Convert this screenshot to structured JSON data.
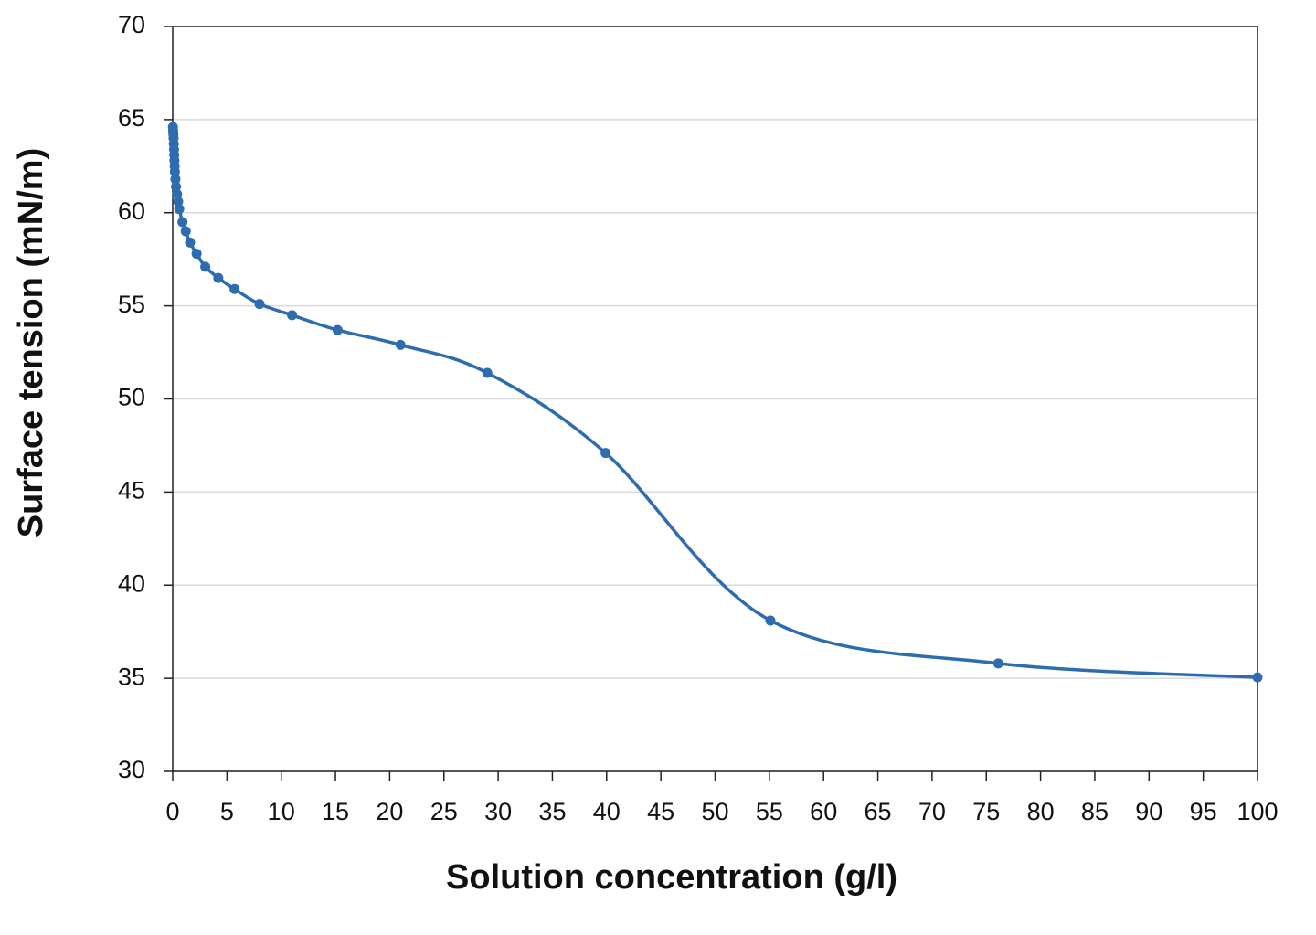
{
  "chart_data": {
    "type": "line",
    "x_label": "Solution concentration (g/l)",
    "y_label": "Surface tension (mN/m)",
    "xlim": [
      0,
      100
    ],
    "xticks": [
      0,
      5,
      10,
      15,
      20,
      25,
      30,
      35,
      40,
      45,
      50,
      55,
      60,
      65,
      70,
      75,
      80,
      85,
      90,
      95,
      100
    ],
    "ylim": [
      30,
      70
    ],
    "yticks": [
      30,
      35,
      40,
      45,
      50,
      55,
      60,
      65,
      70
    ],
    "grid": true,
    "smooth": true,
    "series": [
      {
        "color": "#2e6cb0",
        "x": [
          0.02,
          0.04,
          0.06,
          0.08,
          0.1,
          0.12,
          0.14,
          0.16,
          0.18,
          0.2,
          0.25,
          0.3,
          0.4,
          0.5,
          0.6,
          0.9,
          1.2,
          1.6,
          2.2,
          3,
          4.2,
          5.7,
          8,
          11,
          15.2,
          21,
          29,
          39.9,
          55.1,
          76.1,
          100
        ],
        "values": [
          64.6,
          64.4,
          64.2,
          64.0,
          63.7,
          63.4,
          63.1,
          62.8,
          62.5,
          62.2,
          61.8,
          61.4,
          61.0,
          60.6,
          60.2,
          59.5,
          59.0,
          58.4,
          57.8,
          57.1,
          56.5,
          55.9,
          55.1,
          54.5,
          53.7,
          52.9,
          51.4,
          47.1,
          38.1,
          35.8,
          35.05
        ]
      }
    ]
  }
}
